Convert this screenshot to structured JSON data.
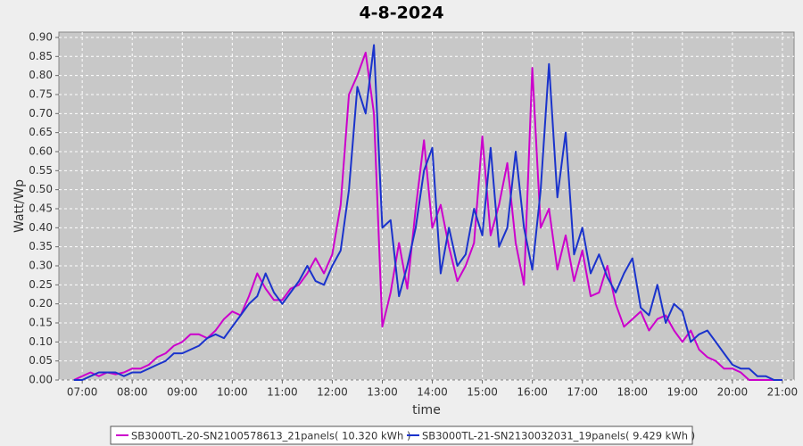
{
  "chart_data": {
    "type": "line",
    "title": "4-8-2024",
    "x_label": "time",
    "y_label": "Watt/Wp",
    "x": [
      410,
      420,
      430,
      440,
      450,
      460,
      470,
      480,
      490,
      500,
      510,
      520,
      530,
      540,
      550,
      560,
      570,
      580,
      590,
      600,
      610,
      620,
      630,
      640,
      650,
      660,
      670,
      680,
      690,
      700,
      710,
      720,
      730,
      740,
      750,
      760,
      770,
      780,
      790,
      800,
      810,
      820,
      830,
      840,
      850,
      860,
      870,
      880,
      890,
      900,
      910,
      920,
      930,
      940,
      950,
      960,
      970,
      980,
      990,
      1000,
      1010,
      1020,
      1030,
      1040,
      1050,
      1060,
      1070,
      1080,
      1090,
      1100,
      1110,
      1120,
      1130,
      1140,
      1150,
      1160,
      1170,
      1180,
      1190,
      1200,
      1210,
      1220,
      1230,
      1240,
      1250,
      1260
    ],
    "series": [
      {
        "name": "SB3000TL-20-SN2100578613_21panels( 10.320 kWh )",
        "color": "#cc00cc",
        "values": [
          0,
          0.01,
          0.02,
          0.01,
          0.02,
          0.015,
          0.02,
          0.03,
          0.03,
          0.04,
          0.06,
          0.07,
          0.09,
          0.1,
          0.12,
          0.12,
          0.11,
          0.13,
          0.16,
          0.18,
          0.17,
          0.22,
          0.28,
          0.24,
          0.21,
          0.21,
          0.24,
          0.25,
          0.28,
          0.32,
          0.28,
          0.33,
          0.46,
          0.75,
          0.8,
          0.86,
          0.7,
          0.14,
          0.23,
          0.36,
          0.24,
          0.45,
          0.63,
          0.4,
          0.46,
          0.35,
          0.26,
          0.3,
          0.36,
          0.64,
          0.38,
          0.46,
          0.57,
          0.36,
          0.25,
          0.82,
          0.4,
          0.45,
          0.29,
          0.38,
          0.26,
          0.34,
          0.22,
          0.23,
          0.3,
          0.2,
          0.14,
          0.16,
          0.18,
          0.13,
          0.16,
          0.17,
          0.13,
          0.1,
          0.13,
          0.08,
          0.06,
          0.05,
          0.03,
          0.03,
          0.02,
          0,
          0,
          0,
          0,
          0
        ]
      },
      {
        "name": "SB3000TL-21-SN2130032031_19panels( 9.429 kWh )",
        "color": "#1a33cc",
        "values": [
          0,
          0,
          0.01,
          0.02,
          0.02,
          0.02,
          0.01,
          0.02,
          0.02,
          0.03,
          0.04,
          0.05,
          0.07,
          0.07,
          0.08,
          0.09,
          0.11,
          0.12,
          0.11,
          0.14,
          0.17,
          0.2,
          0.22,
          0.28,
          0.23,
          0.2,
          0.23,
          0.26,
          0.3,
          0.26,
          0.25,
          0.3,
          0.34,
          0.5,
          0.77,
          0.7,
          0.88,
          0.4,
          0.42,
          0.22,
          0.3,
          0.4,
          0.55,
          0.61,
          0.28,
          0.4,
          0.3,
          0.33,
          0.45,
          0.38,
          0.61,
          0.35,
          0.4,
          0.6,
          0.4,
          0.29,
          0.5,
          0.83,
          0.48,
          0.65,
          0.33,
          0.4,
          0.28,
          0.33,
          0.27,
          0.23,
          0.28,
          0.32,
          0.19,
          0.17,
          0.25,
          0.15,
          0.2,
          0.18,
          0.1,
          0.12,
          0.13,
          0.1,
          0.07,
          0.04,
          0.03,
          0.03,
          0.01,
          0.01,
          0,
          0
        ]
      }
    ],
    "xlim": [
      392,
      1274
    ],
    "ylim": [
      0,
      0.914
    ],
    "xticks": [
      {
        "value": 420,
        "label": "07:00"
      },
      {
        "value": 480,
        "label": "08:00"
      },
      {
        "value": 540,
        "label": "09:00"
      },
      {
        "value": 600,
        "label": "10:00"
      },
      {
        "value": 660,
        "label": "11:00"
      },
      {
        "value": 720,
        "label": "12:00"
      },
      {
        "value": 780,
        "label": "13:00"
      },
      {
        "value": 840,
        "label": "14:00"
      },
      {
        "value": 900,
        "label": "15:00"
      },
      {
        "value": 960,
        "label": "16:00"
      },
      {
        "value": 1020,
        "label": "17:00"
      },
      {
        "value": 1080,
        "label": "18:00"
      },
      {
        "value": 1140,
        "label": "19:00"
      },
      {
        "value": 1200,
        "label": "20:00"
      },
      {
        "value": 1260,
        "label": "21:00"
      }
    ],
    "yticks": [
      {
        "value": 0,
        "label": "0.00"
      },
      {
        "value": 0.05,
        "label": "0.05"
      },
      {
        "value": 0.1,
        "label": "0.10"
      },
      {
        "value": 0.15,
        "label": "0.15"
      },
      {
        "value": 0.2,
        "label": "0.20"
      },
      {
        "value": 0.25,
        "label": "0.25"
      },
      {
        "value": 0.3,
        "label": "0.30"
      },
      {
        "value": 0.35,
        "label": "0.35"
      },
      {
        "value": 0.4,
        "label": "0.40"
      },
      {
        "value": 0.45,
        "label": "0.45"
      },
      {
        "value": 0.5,
        "label": "0.50"
      },
      {
        "value": 0.55,
        "label": "0.55"
      },
      {
        "value": 0.6,
        "label": "0.60"
      },
      {
        "value": 0.65,
        "label": "0.65"
      },
      {
        "value": 0.7,
        "label": "0.70"
      },
      {
        "value": 0.75,
        "label": "0.75"
      },
      {
        "value": 0.8,
        "label": "0.80"
      },
      {
        "value": 0.85,
        "label": "0.85"
      },
      {
        "value": 0.9,
        "label": "0.90"
      }
    ],
    "grid": true,
    "legend": "bottom"
  }
}
